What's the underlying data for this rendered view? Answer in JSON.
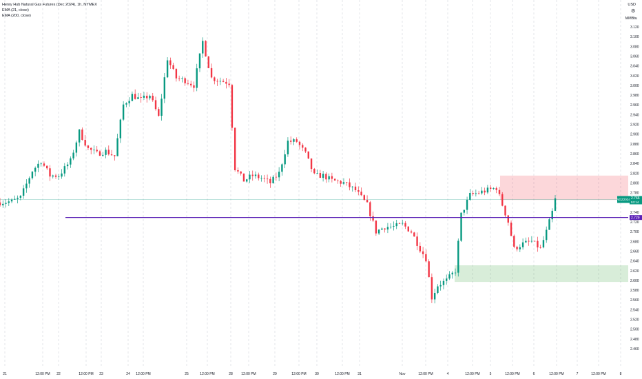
{
  "legend": {
    "title": "Henry Hub Natural Gas Futures (Dec 2024), 1h, NYMEX",
    "ema1": "EMA (21, close)",
    "ema2": "EMA (200, close)"
  },
  "axis": {
    "currency": "USD",
    "unit": "MMBtu",
    "settings_icon": "gear-icon"
  },
  "labels": {
    "symbol": "NGZ2024",
    "price": "2.766",
    "countdown": "53:14",
    "level": "2.729"
  },
  "colors": {
    "up": "#089981",
    "down": "#f23645",
    "level_line": "#5b21b6",
    "supply_zone": "rgba(242,54,69,0.2)",
    "demand_zone": "rgba(76,175,80,0.22)",
    "grid": "#d1d4dc",
    "text": "#131722"
  },
  "chart_data": {
    "type": "candlestick",
    "title": "Henry Hub Natural Gas Futures (Dec 2024), 1h, NYMEX",
    "ylim": [
      2.46,
      3.13
    ],
    "y_ticks": [
      "3.120",
      "3.100",
      "3.080",
      "3.060",
      "3.040",
      "3.020",
      "3.000",
      "2.980",
      "2.960",
      "2.940",
      "2.920",
      "2.900",
      "2.880",
      "2.860",
      "2.840",
      "2.820",
      "2.800",
      "2.780",
      "2.760",
      "2.740",
      "2.720",
      "2.700",
      "2.680",
      "2.660",
      "2.640",
      "2.620",
      "2.600",
      "2.580",
      "2.560",
      "2.540",
      "2.520",
      "2.500",
      "2.480",
      "2.460"
    ],
    "x_ticks": [
      "21",
      "12:00 PM",
      "22",
      "12:00 PM",
      "23",
      "24",
      "12:00 PM",
      "25",
      "12:00 PM",
      "28",
      "12:00 PM",
      "29",
      "12:00 PM",
      "30",
      "12:00 PM",
      "31",
      "Nov",
      "12:00 PM",
      "4",
      "12:00 PM",
      "5",
      "12:00 PM",
      "6",
      "12:00 PM",
      "7",
      "12:00 PM",
      "8"
    ],
    "grid": true,
    "horizontal_level": 2.729,
    "last_price": 2.766,
    "zones": [
      {
        "kind": "supply",
        "from": 2.765,
        "to": 2.815
      },
      {
        "kind": "demand",
        "from": 2.597,
        "to": 2.631
      }
    ],
    "price_path": [
      {
        "t": 0,
        "p": 2.76
      },
      {
        "t": 8,
        "p": 2.762
      },
      {
        "t": 14,
        "p": 2.77
      },
      {
        "t": 22,
        "p": 2.825
      },
      {
        "t": 28,
        "p": 2.845
      },
      {
        "t": 34,
        "p": 2.815
      },
      {
        "t": 40,
        "p": 2.815
      },
      {
        "t": 48,
        "p": 2.845
      },
      {
        "t": 54,
        "p": 2.905
      },
      {
        "t": 60,
        "p": 2.87
      },
      {
        "t": 66,
        "p": 2.86
      },
      {
        "t": 72,
        "p": 2.865
      },
      {
        "t": 78,
        "p": 2.855
      },
      {
        "t": 84,
        "p": 2.96
      },
      {
        "t": 90,
        "p": 2.98
      },
      {
        "t": 96,
        "p": 2.97
      },
      {
        "t": 102,
        "p": 2.98
      },
      {
        "t": 108,
        "p": 2.935
      },
      {
        "t": 114,
        "p": 3.055
      },
      {
        "t": 120,
        "p": 3.015
      },
      {
        "t": 126,
        "p": 3.01
      },
      {
        "t": 132,
        "p": 3.0
      },
      {
        "t": 138,
        "p": 3.09
      },
      {
        "t": 144,
        "p": 3.015
      },
      {
        "t": 150,
        "p": 3.01
      },
      {
        "t": 156,
        "p": 3.005
      },
      {
        "t": 160,
        "p": 2.83
      },
      {
        "t": 166,
        "p": 2.805
      },
      {
        "t": 172,
        "p": 2.815
      },
      {
        "t": 178,
        "p": 2.81
      },
      {
        "t": 184,
        "p": 2.8
      },
      {
        "t": 190,
        "p": 2.82
      },
      {
        "t": 196,
        "p": 2.885
      },
      {
        "t": 202,
        "p": 2.885
      },
      {
        "t": 208,
        "p": 2.86
      },
      {
        "t": 214,
        "p": 2.815
      },
      {
        "t": 220,
        "p": 2.815
      },
      {
        "t": 226,
        "p": 2.805
      },
      {
        "t": 234,
        "p": 2.8
      },
      {
        "t": 242,
        "p": 2.785
      },
      {
        "t": 250,
        "p": 2.755
      },
      {
        "t": 256,
        "p": 2.7
      },
      {
        "t": 262,
        "p": 2.71
      },
      {
        "t": 268,
        "p": 2.71
      },
      {
        "t": 274,
        "p": 2.715
      },
      {
        "t": 280,
        "p": 2.7
      },
      {
        "t": 286,
        "p": 2.665
      },
      {
        "t": 290,
        "p": 2.645
      },
      {
        "t": 294,
        "p": 2.565
      },
      {
        "t": 298,
        "p": 2.59
      },
      {
        "t": 304,
        "p": 2.6
      },
      {
        "t": 310,
        "p": 2.62
      },
      {
        "t": 314,
        "p": 2.735
      },
      {
        "t": 320,
        "p": 2.775
      },
      {
        "t": 326,
        "p": 2.78
      },
      {
        "t": 332,
        "p": 2.785
      },
      {
        "t": 338,
        "p": 2.79
      },
      {
        "t": 342,
        "p": 2.755
      },
      {
        "t": 346,
        "p": 2.72
      },
      {
        "t": 350,
        "p": 2.665
      },
      {
        "t": 356,
        "p": 2.675
      },
      {
        "t": 362,
        "p": 2.68
      },
      {
        "t": 368,
        "p": 2.665
      },
      {
        "t": 372,
        "p": 2.7
      },
      {
        "t": 376,
        "p": 2.74
      },
      {
        "t": 378,
        "p": 2.766
      }
    ]
  }
}
